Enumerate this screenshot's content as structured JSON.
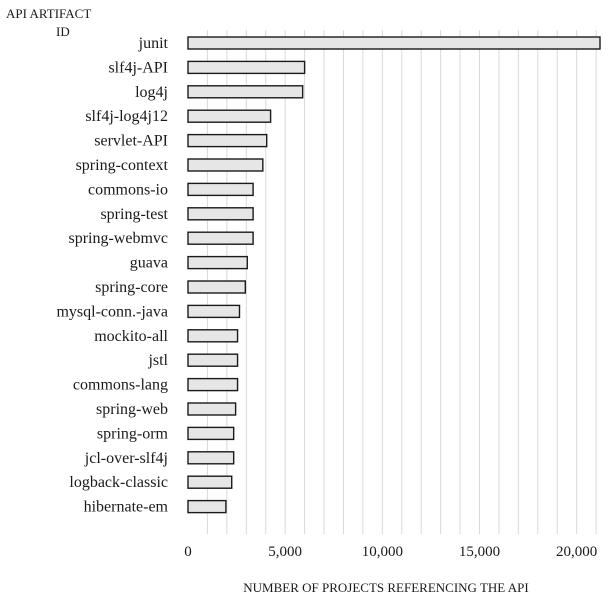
{
  "chart_data": {
    "type": "bar",
    "orientation": "horizontal",
    "ylabel_lines": [
      "API ARTIFACT",
      "ID"
    ],
    "xlabel": "NUMBER OF PROJECTS REFERENCING THE API",
    "categories": [
      "junit",
      "slf4j-API",
      "log4j",
      "slf4j-log4j12",
      "servlet-API",
      "spring-context",
      "commons-io",
      "spring-test",
      "spring-webmvc",
      "guava",
      "spring-core",
      "mysql-conn.-java",
      "mockito-all",
      "jstl",
      "commons-lang",
      "spring-web",
      "spring-orm",
      "jcl-over-slf4j",
      "logback-classic",
      "hibernate-em"
    ],
    "values": [
      21200,
      6000,
      5900,
      4250,
      4050,
      3850,
      3350,
      3350,
      3350,
      3050,
      2950,
      2650,
      2550,
      2550,
      2550,
      2450,
      2350,
      2350,
      2250,
      1950
    ],
    "xlim": [
      0,
      21200
    ],
    "xticks": [
      0,
      5000,
      10000,
      15000,
      20000
    ],
    "xtick_labels": [
      "0",
      "5,000",
      "10,000",
      "15,000",
      "20,000"
    ],
    "grid": true,
    "bar_fill": "#e6e6e6",
    "bar_stroke": "#1a1a1a",
    "grid_color": "#d9d9d9"
  }
}
